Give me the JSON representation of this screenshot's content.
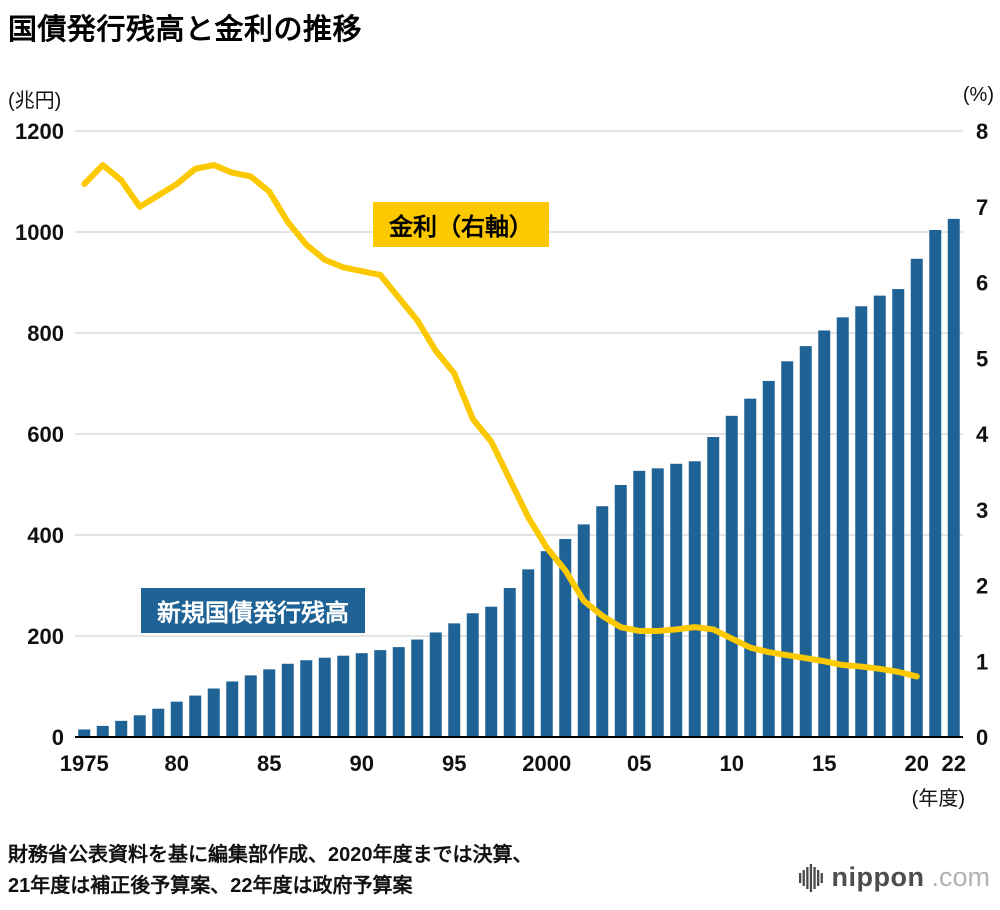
{
  "title": "国債発行残高と金利の推移",
  "axes": {
    "left_unit": "(兆円)",
    "right_unit": "(%)",
    "x_unit": "(年度)"
  },
  "labels": {
    "line": "金利（右軸）",
    "bar": "新規国債発行残高"
  },
  "footer": {
    "line1": "財務省公表資料を基に編集部作成、2020年度までは決算、",
    "line2": "21年度は補正後予算案、22年度は政府予算案"
  },
  "logo": {
    "name": "nippon",
    "suffix": ".com"
  },
  "colors": {
    "bar": "#1f6396",
    "line": "#fcc800",
    "grid": "#c9c9c9",
    "axis_line": "#000000"
  },
  "chart_data": {
    "type": "bar+line",
    "title": "国債発行残高と金利の推移",
    "x_unit": "年度",
    "years": [
      1975,
      1976,
      1977,
      1978,
      1979,
      1980,
      1981,
      1982,
      1983,
      1984,
      1985,
      1986,
      1987,
      1988,
      1989,
      1990,
      1991,
      1992,
      1993,
      1994,
      1995,
      1996,
      1997,
      1998,
      1999,
      2000,
      2001,
      2002,
      2003,
      2004,
      2005,
      2006,
      2007,
      2008,
      2009,
      2010,
      2011,
      2012,
      2013,
      2014,
      2015,
      2016,
      2017,
      2018,
      2019,
      2020,
      2021,
      2022
    ],
    "bars": {
      "name": "新規国債発行残高",
      "unit": "兆円",
      "axis": "left",
      "values": [
        15,
        22,
        32,
        43,
        56,
        70,
        82,
        96,
        110,
        122,
        134,
        145,
        152,
        157,
        161,
        166,
        172,
        178,
        193,
        207,
        225,
        245,
        258,
        295,
        332,
        368,
        392,
        421,
        457,
        499,
        527,
        532,
        541,
        546,
        594,
        636,
        670,
        705,
        744,
        774,
        805,
        831,
        853,
        874,
        887,
        947,
        1004,
        1026
      ]
    },
    "line": {
      "name": "金利",
      "unit": "%",
      "axis": "right",
      "start_year": 1975,
      "end_year": 2020,
      "values": [
        7.3,
        7.55,
        7.35,
        7.0,
        7.15,
        7.3,
        7.5,
        7.55,
        7.45,
        7.4,
        7.2,
        6.8,
        6.5,
        6.3,
        6.2,
        6.15,
        6.1,
        5.8,
        5.5,
        5.1,
        4.8,
        4.2,
        3.9,
        3.4,
        2.9,
        2.5,
        2.2,
        1.8,
        1.6,
        1.45,
        1.4,
        1.4,
        1.42,
        1.45,
        1.42,
        1.3,
        1.18,
        1.12,
        1.08,
        1.04,
        1.0,
        0.95,
        0.93,
        0.9,
        0.86,
        0.8
      ]
    },
    "left_axis": {
      "max": 1200,
      "ticks": [
        0,
        200,
        400,
        600,
        800,
        1000,
        1200
      ]
    },
    "right_axis": {
      "max": 8,
      "ticks": [
        0,
        1,
        2,
        3,
        4,
        5,
        6,
        7,
        8
      ]
    },
    "x_ticks": [
      {
        "index": 0,
        "label": "1975"
      },
      {
        "index": 5,
        "label": "80"
      },
      {
        "index": 10,
        "label": "85"
      },
      {
        "index": 15,
        "label": "90"
      },
      {
        "index": 20,
        "label": "95"
      },
      {
        "index": 25,
        "label": "2000"
      },
      {
        "index": 30,
        "label": "05"
      },
      {
        "index": 35,
        "label": "10"
      },
      {
        "index": 40,
        "label": "15"
      },
      {
        "index": 45,
        "label": "20"
      },
      {
        "index": 47,
        "label": "22"
      }
    ]
  }
}
